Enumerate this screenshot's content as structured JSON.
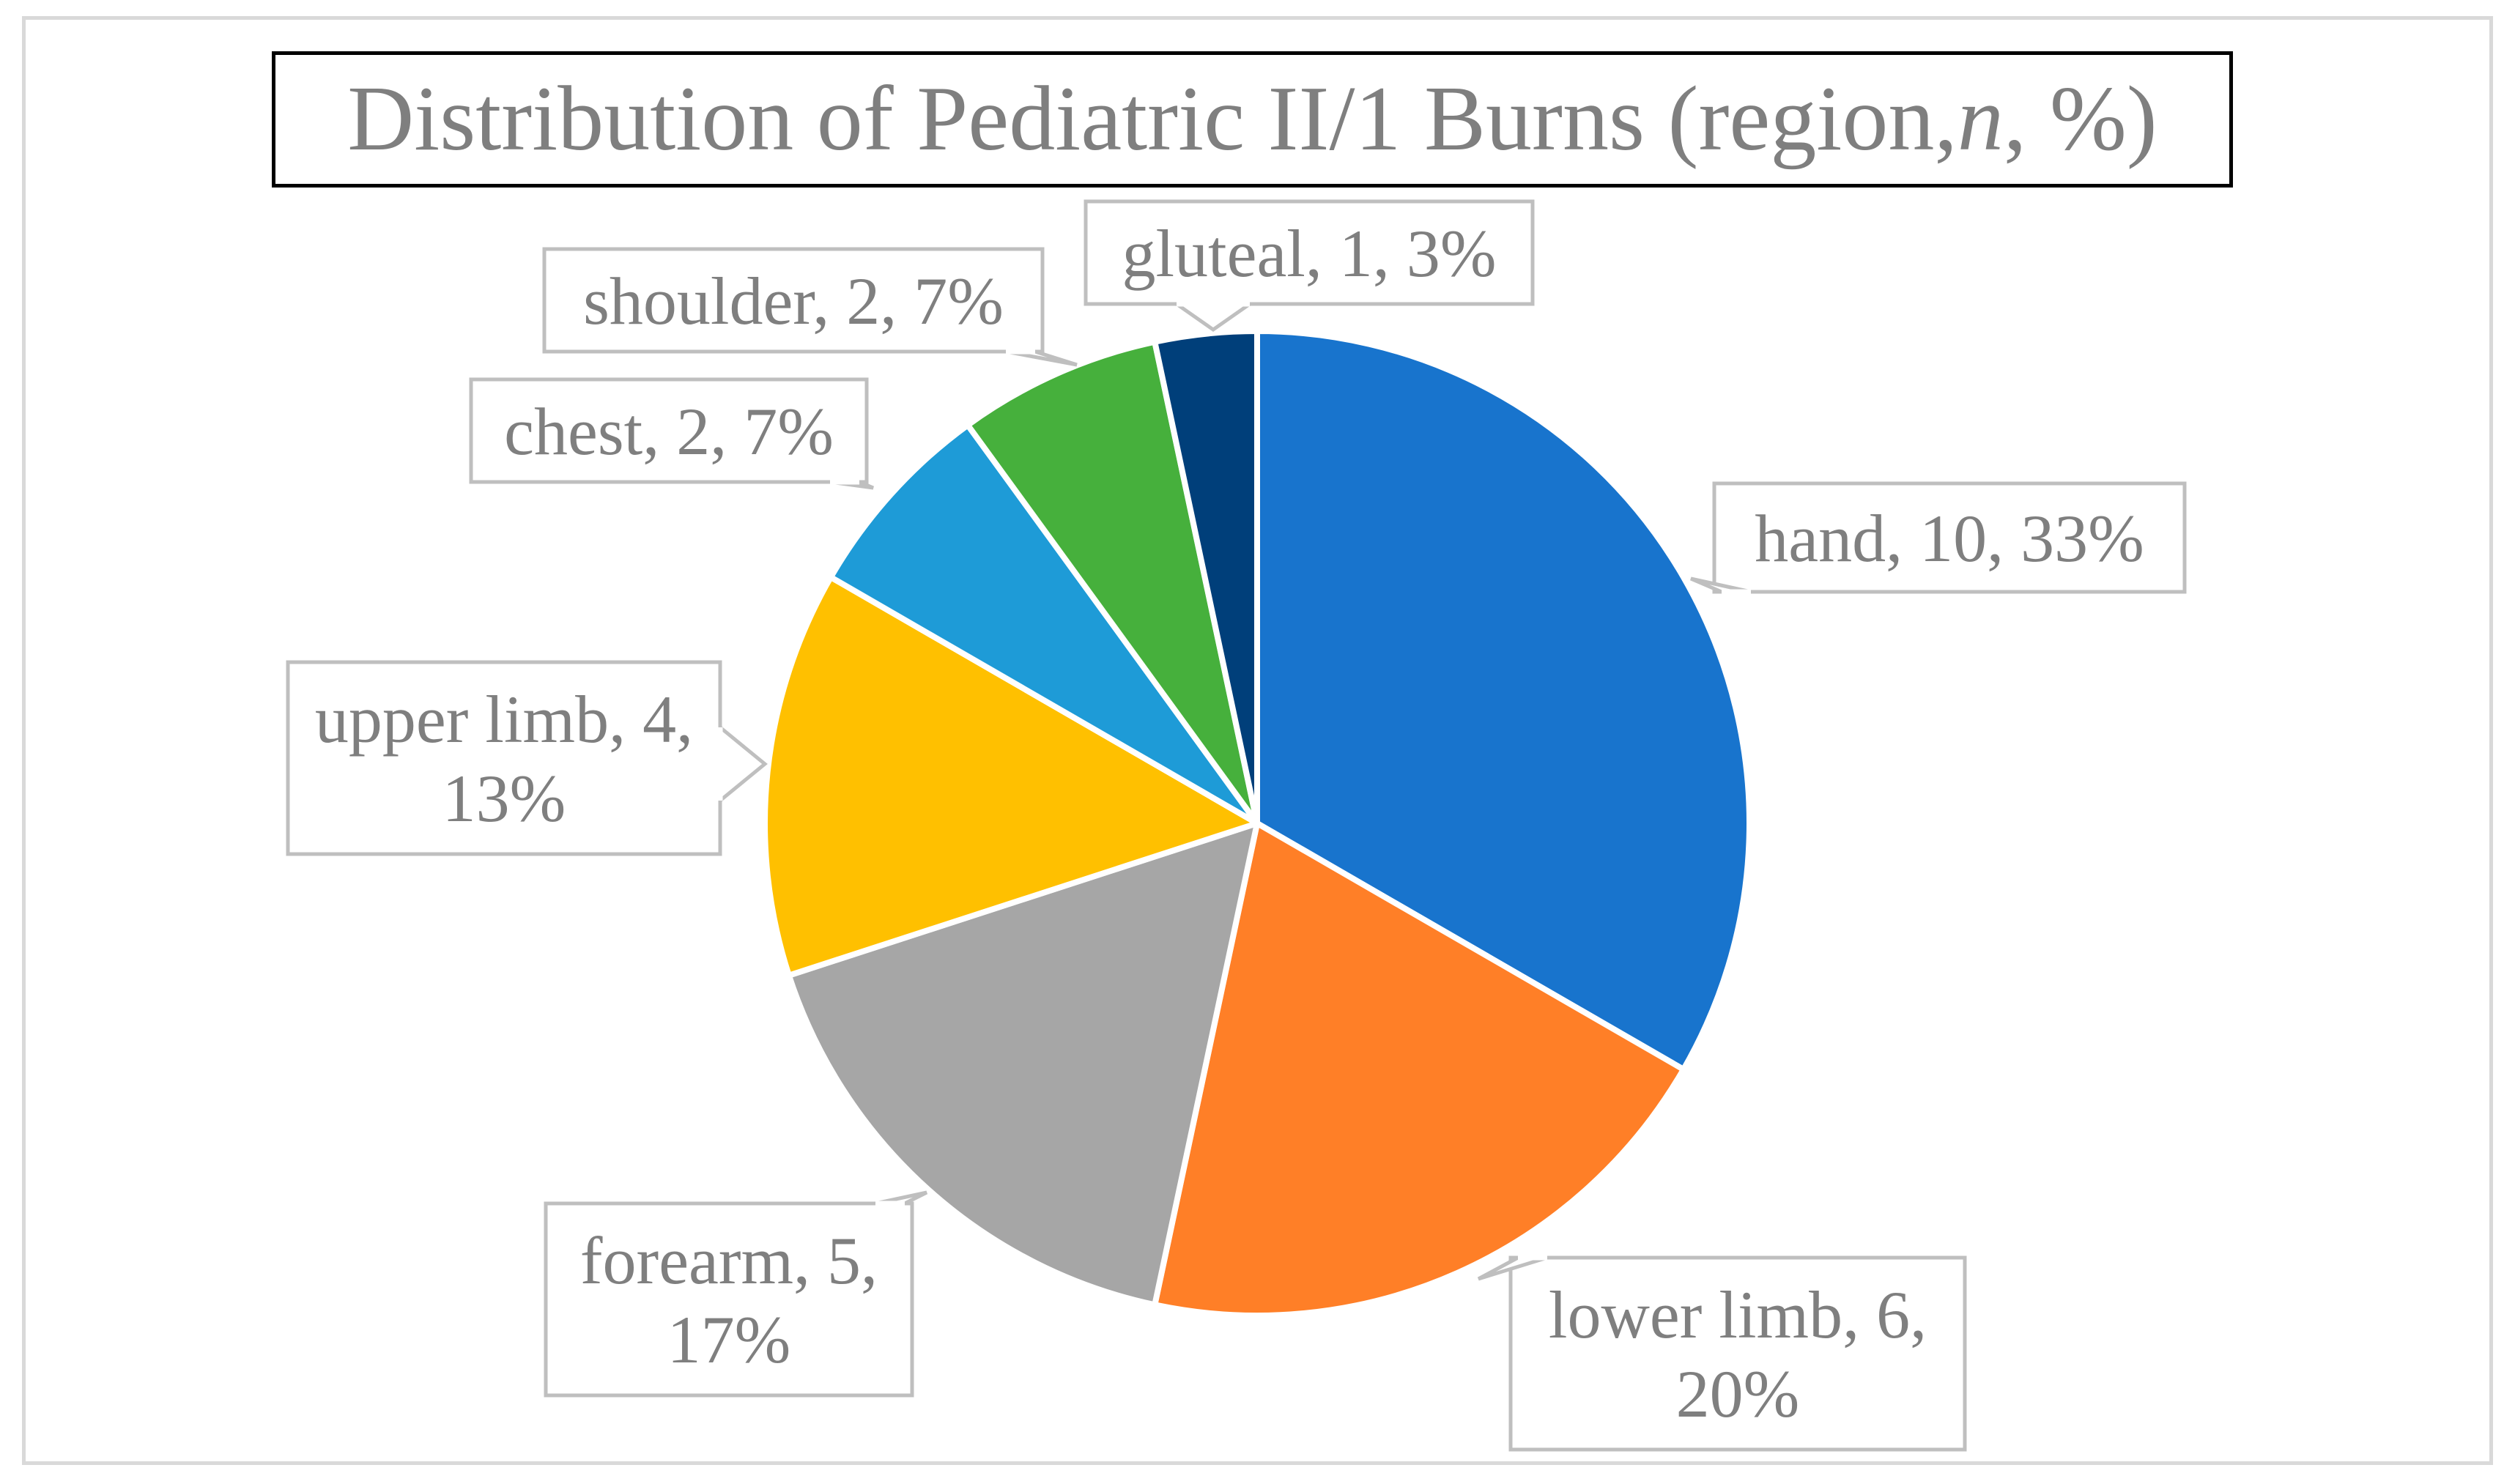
{
  "chart_data": {
    "type": "pie",
    "title": {
      "before": "Distribution of Pediatric II/1 Burns (region, ",
      "italic": "n",
      "after": ", %)"
    },
    "start_angle_deg": 0,
    "direction": "clockwise",
    "slices": [
      {
        "label": "hand",
        "value": 10,
        "percent": "33%",
        "color": "#1874cd",
        "label_lines": [
          "hand, 10, 33%"
        ]
      },
      {
        "label": "lower limb",
        "value": 6,
        "percent": "20%",
        "color": "#ff7f27",
        "label_lines": [
          "lower limb, 6,",
          "20%"
        ]
      },
      {
        "label": "forearm",
        "value": 5,
        "percent": "17%",
        "color": "#a6a6a6",
        "label_lines": [
          "forearm, 5,",
          "17%"
        ]
      },
      {
        "label": "upper limb",
        "value": 4,
        "percent": "13%",
        "color": "#ffc000",
        "label_lines": [
          "upper limb, 4,",
          "13%"
        ]
      },
      {
        "label": "chest",
        "value": 2,
        "percent": "7%",
        "color": "#1e9bd7",
        "label_lines": [
          "chest, 2, 7%"
        ]
      },
      {
        "label": "shoulder",
        "value": 2,
        "percent": "7%",
        "color": "#46b03c",
        "label_lines": [
          "shoulder, 2, 7%"
        ]
      },
      {
        "label": "gluteal",
        "value": 1,
        "percent": "3%",
        "color": "#003f7a",
        "label_lines": [
          "gluteal, 1, 3%"
        ]
      }
    ],
    "colors": {
      "label_text": "#7f7f7f",
      "callout_border": "#bfbfbf",
      "slice_border": "#ffffff"
    }
  }
}
